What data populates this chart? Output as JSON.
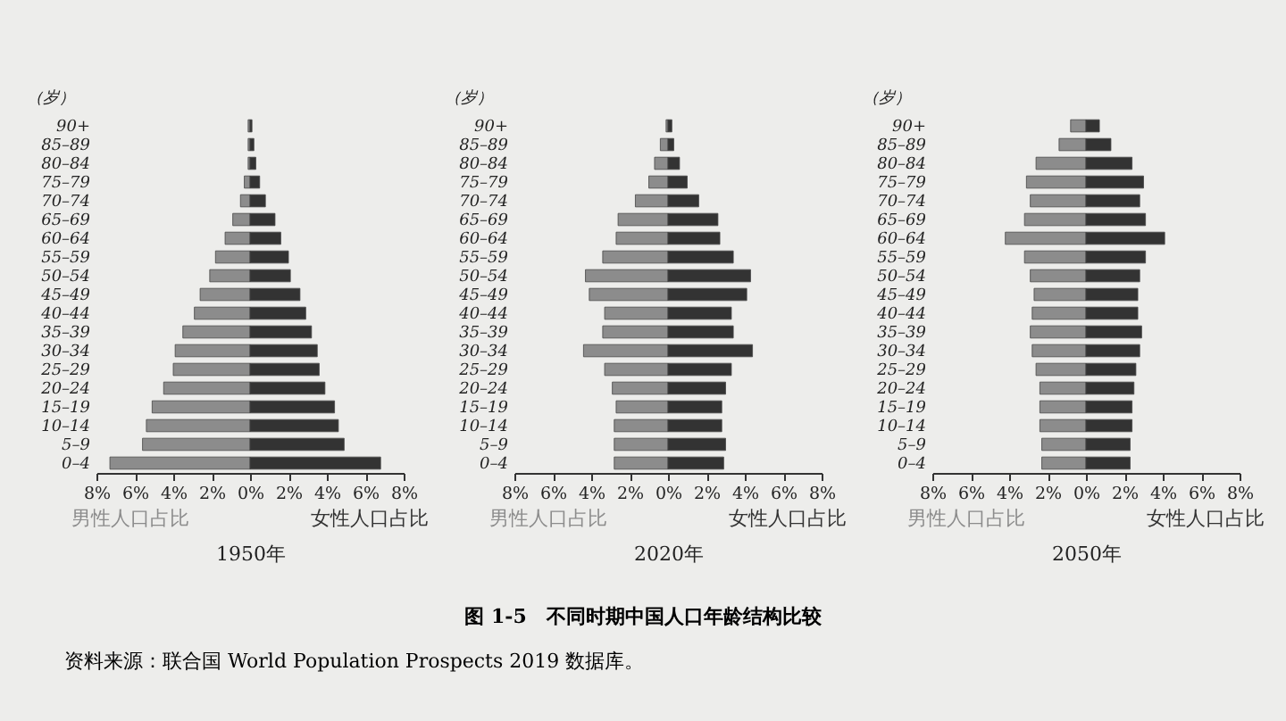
{
  "chart_data": [
    {
      "type": "bar",
      "orientation": "horizontal",
      "stacked": true,
      "xlabel": "1950年",
      "ylabel": "（岁）",
      "categories": [
        "90+",
        "85–89",
        "80–84",
        "75–79",
        "70–74",
        "65–69",
        "60–64",
        "55–59",
        "50–54",
        "45–49",
        "40–44",
        "35–39",
        "30–34",
        "25–29",
        "20–24",
        "15–19",
        "10–14",
        "5–9",
        "0–4"
      ],
      "series": [
        {
          "name": "男性人口占比",
          "color": "#8c8c8c",
          "values": [
            -0.1,
            -0.1,
            -0.1,
            -0.3,
            -0.5,
            -0.9,
            -1.3,
            -1.8,
            -2.1,
            -2.6,
            -2.9,
            -3.5,
            -3.9,
            -4.0,
            -4.5,
            -5.1,
            -5.4,
            -5.6,
            -7.3
          ]
        },
        {
          "name": "女性人口占比",
          "color": "#333333",
          "values": [
            0.1,
            0.2,
            0.3,
            0.5,
            0.8,
            1.3,
            1.6,
            2.0,
            2.1,
            2.6,
            2.9,
            3.2,
            3.5,
            3.6,
            3.9,
            4.4,
            4.6,
            4.9,
            6.8
          ]
        }
      ],
      "xlim": [
        -8,
        8
      ],
      "xticks": [
        {
          "value": -8,
          "label": "8%"
        },
        {
          "value": -6,
          "label": "6%"
        },
        {
          "value": -4,
          "label": "4%"
        },
        {
          "value": -2,
          "label": "2%"
        },
        {
          "value": 0,
          "label": "0%"
        },
        {
          "value": 2,
          "label": "2%"
        },
        {
          "value": 4,
          "label": "4%"
        },
        {
          "value": 6,
          "label": "6%"
        },
        {
          "value": 8,
          "label": "8%"
        }
      ],
      "annotations": [
        "图 1-5　不同时期中国人口年龄结构比较",
        "资料来源：联合国 World Population Prospects 2019 数据库。"
      ]
    },
    {
      "type": "bar",
      "orientation": "horizontal",
      "stacked": true,
      "xlabel": "2020年",
      "ylabel": "（岁）",
      "categories": [
        "90+",
        "85–89",
        "80–84",
        "75–79",
        "70–74",
        "65–69",
        "60–64",
        "55–59",
        "50–54",
        "45–49",
        "40–44",
        "35–39",
        "30–34",
        "25–29",
        "20–24",
        "15–19",
        "10–14",
        "5–9",
        "0–4"
      ],
      "series": [
        {
          "name": "男性人口占比",
          "color": "#8c8c8c",
          "values": [
            -0.1,
            -0.4,
            -0.7,
            -1.0,
            -1.7,
            -2.6,
            -2.7,
            -3.4,
            -4.3,
            -4.1,
            -3.3,
            -3.4,
            -4.4,
            -3.3,
            -2.9,
            -2.7,
            -2.8,
            -2.8,
            -2.8
          ]
        },
        {
          "name": "女性人口占比",
          "color": "#333333",
          "values": [
            0.2,
            0.3,
            0.6,
            1.0,
            1.6,
            2.6,
            2.7,
            3.4,
            4.3,
            4.1,
            3.3,
            3.4,
            4.4,
            3.3,
            3.0,
            2.8,
            2.8,
            3.0,
            2.9
          ]
        }
      ],
      "xlim": [
        -8,
        8
      ],
      "xticks": [
        {
          "value": -8,
          "label": "8%"
        },
        {
          "value": -6,
          "label": "6%"
        },
        {
          "value": -4,
          "label": "4%"
        },
        {
          "value": -2,
          "label": "2%"
        },
        {
          "value": 0,
          "label": "0%"
        },
        {
          "value": 2,
          "label": "2%"
        },
        {
          "value": 4,
          "label": "4%"
        },
        {
          "value": 6,
          "label": "6%"
        },
        {
          "value": 8,
          "label": "8%"
        }
      ]
    },
    {
      "type": "bar",
      "orientation": "horizontal",
      "stacked": true,
      "xlabel": "2050年",
      "ylabel": "（岁）",
      "categories": [
        "90+",
        "85–89",
        "80–84",
        "75–79",
        "70–74",
        "65–69",
        "60–64",
        "55–59",
        "50–54",
        "45–49",
        "40–44",
        "35–39",
        "30–34",
        "25–29",
        "20–24",
        "15–19",
        "10–14",
        "5–9",
        "0–4"
      ],
      "series": [
        {
          "name": "男性人口占比",
          "color": "#8c8c8c",
          "values": [
            -0.8,
            -1.4,
            -2.6,
            -3.1,
            -2.9,
            -3.2,
            -4.2,
            -3.2,
            -2.9,
            -2.7,
            -2.8,
            -2.9,
            -2.8,
            -2.6,
            -2.4,
            -2.4,
            -2.4,
            -2.3,
            -2.3
          ]
        },
        {
          "name": "女性人口占比",
          "color": "#333333",
          "values": [
            0.7,
            1.3,
            2.4,
            3.0,
            2.8,
            3.1,
            4.1,
            3.1,
            2.8,
            2.7,
            2.7,
            2.9,
            2.8,
            2.6,
            2.5,
            2.4,
            2.4,
            2.3,
            2.3
          ]
        }
      ],
      "xlim": [
        -8,
        8
      ],
      "xticks": [
        {
          "value": -8,
          "label": "8%"
        },
        {
          "value": -6,
          "label": "6%"
        },
        {
          "value": -4,
          "label": "4%"
        },
        {
          "value": -2,
          "label": "2%"
        },
        {
          "value": 0,
          "label": "0%"
        },
        {
          "value": 2,
          "label": "2%"
        },
        {
          "value": 4,
          "label": "4%"
        },
        {
          "value": 6,
          "label": "6%"
        },
        {
          "value": 8,
          "label": "8%"
        }
      ]
    }
  ]
}
